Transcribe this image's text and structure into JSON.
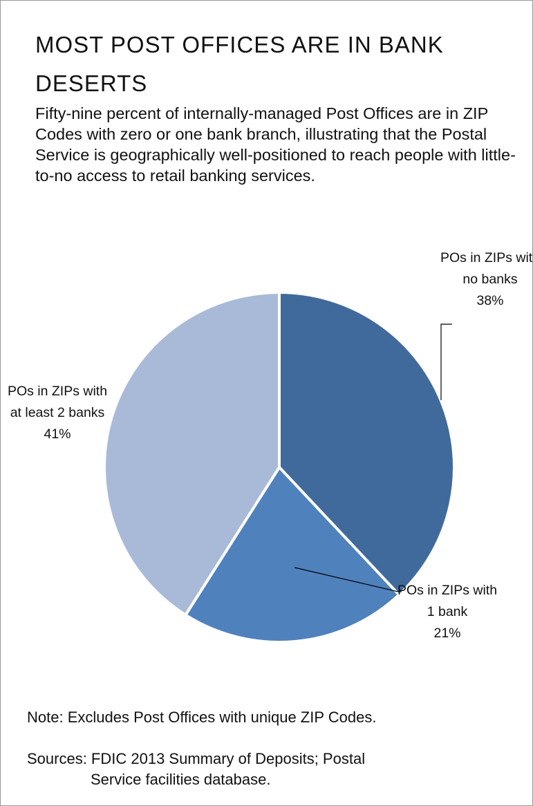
{
  "chart_data": {
    "type": "pie",
    "title": "MOST POST OFFICES ARE IN BANK DESERTS",
    "subtitle": "Fifty-nine percent of internally-managed Post Offices are in ZIP Codes with zero or one bank branch, illustrating that the Postal Service is geographically well-positioned to reach people with little-to-no access to retail banking services.",
    "categories": [
      "POs in ZIPs with no banks",
      "POs in ZIPs with 1 bank",
      "POs in ZIPs with at least 2 banks"
    ],
    "values": [
      38,
      21,
      41
    ],
    "value_labels": [
      "38%",
      "21%",
      "41%"
    ],
    "colors": [
      "#416a9c",
      "#4f81bd",
      "#a9bad8"
    ],
    "notes": [
      "Note: Excludes Post Offices with unique ZIP Codes.",
      "Sources: FDIC 2013 Summary of Deposits; Postal Service facilities database."
    ]
  }
}
